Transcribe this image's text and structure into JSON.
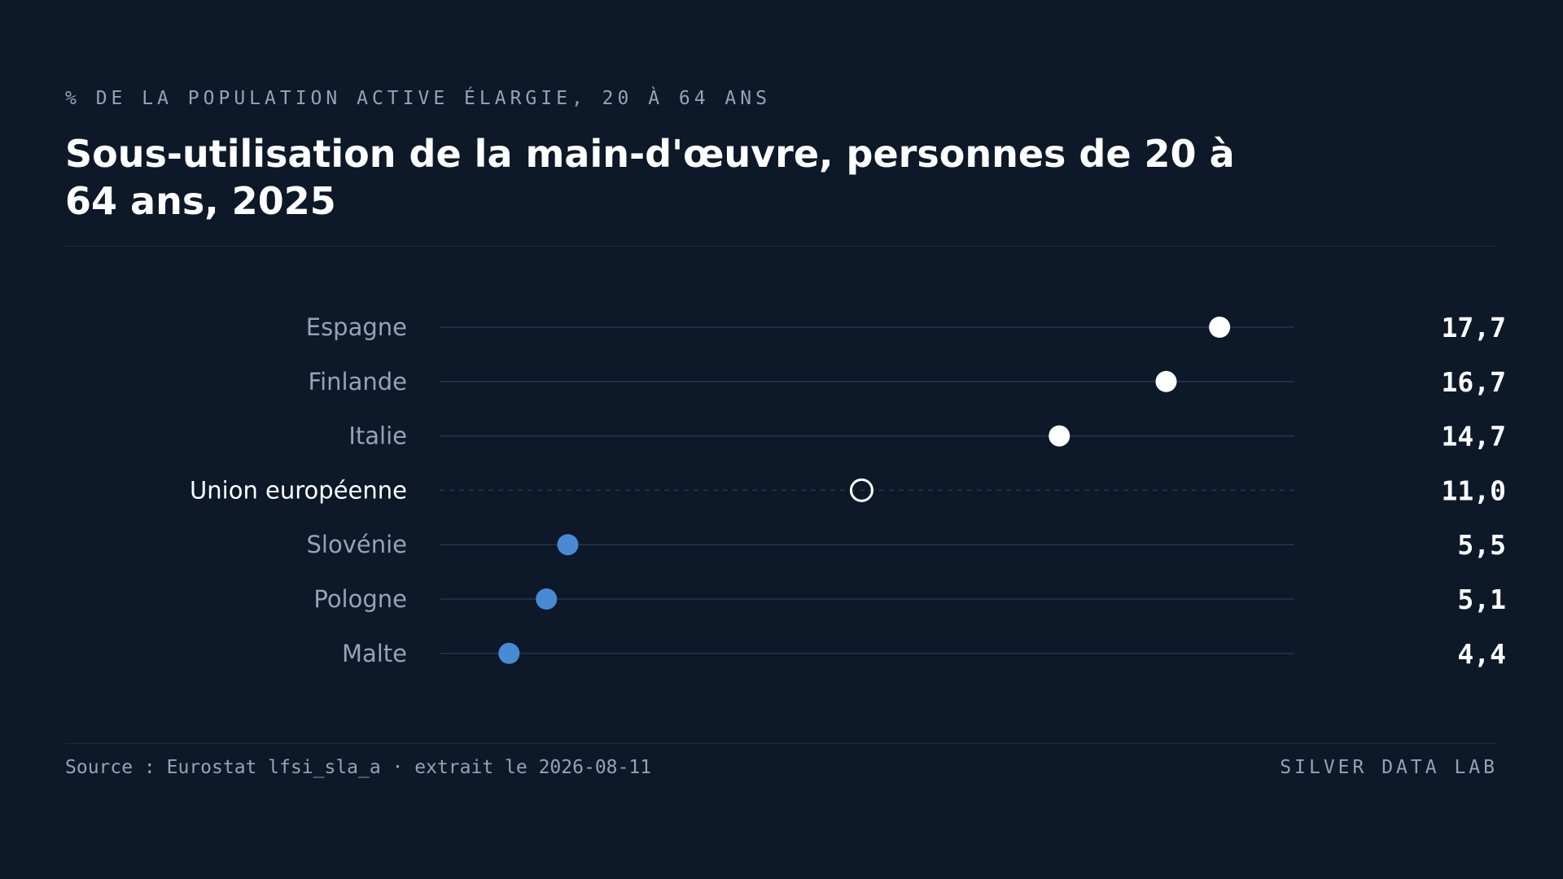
{
  "header": {
    "eyebrow": "% DE LA POPULATION ACTIVE ÉLARGIE, 20 À 64 ANS",
    "title": "Sous-utilisation de la main-d'œuvre, personnes de 20 à 64 ans, 2025"
  },
  "footer": {
    "source": "Source : Eurostat lfsi_sla_a · extrait le 2026-08-11",
    "brand": "SILVER DATA LAB"
  },
  "colors": {
    "background": "#0d1829",
    "high": "#ffffff",
    "low": "#4a8ad4",
    "reference": "#ffffff",
    "track": "#243650",
    "label": "#95a3b8"
  },
  "chart_data": {
    "type": "dot",
    "title": "Sous-utilisation de la main-d'œuvre, personnes de 20 à 64 ans, 2025",
    "subtitle": "% DE LA POPULATION ACTIVE ÉLARGIE, 20 À 64 ANS",
    "xlim": [
      3.1,
      19.1
    ],
    "grid": false,
    "legend": "none",
    "points": [
      {
        "category": "Espagne",
        "value": 17.7,
        "value_label": "17,7",
        "group": "high"
      },
      {
        "category": "Finlande",
        "value": 16.7,
        "value_label": "16,7",
        "group": "high"
      },
      {
        "category": "Italie",
        "value": 14.7,
        "value_label": "14,7",
        "group": "high"
      },
      {
        "category": "Union européenne",
        "value": 11.0,
        "value_label": "11,0",
        "group": "reference"
      },
      {
        "category": "Slovénie",
        "value": 5.5,
        "value_label": "5,5",
        "group": "low"
      },
      {
        "category": "Pologne",
        "value": 5.1,
        "value_label": "5,1",
        "group": "low"
      },
      {
        "category": "Malte",
        "value": 4.4,
        "value_label": "4,4",
        "group": "low"
      }
    ]
  }
}
